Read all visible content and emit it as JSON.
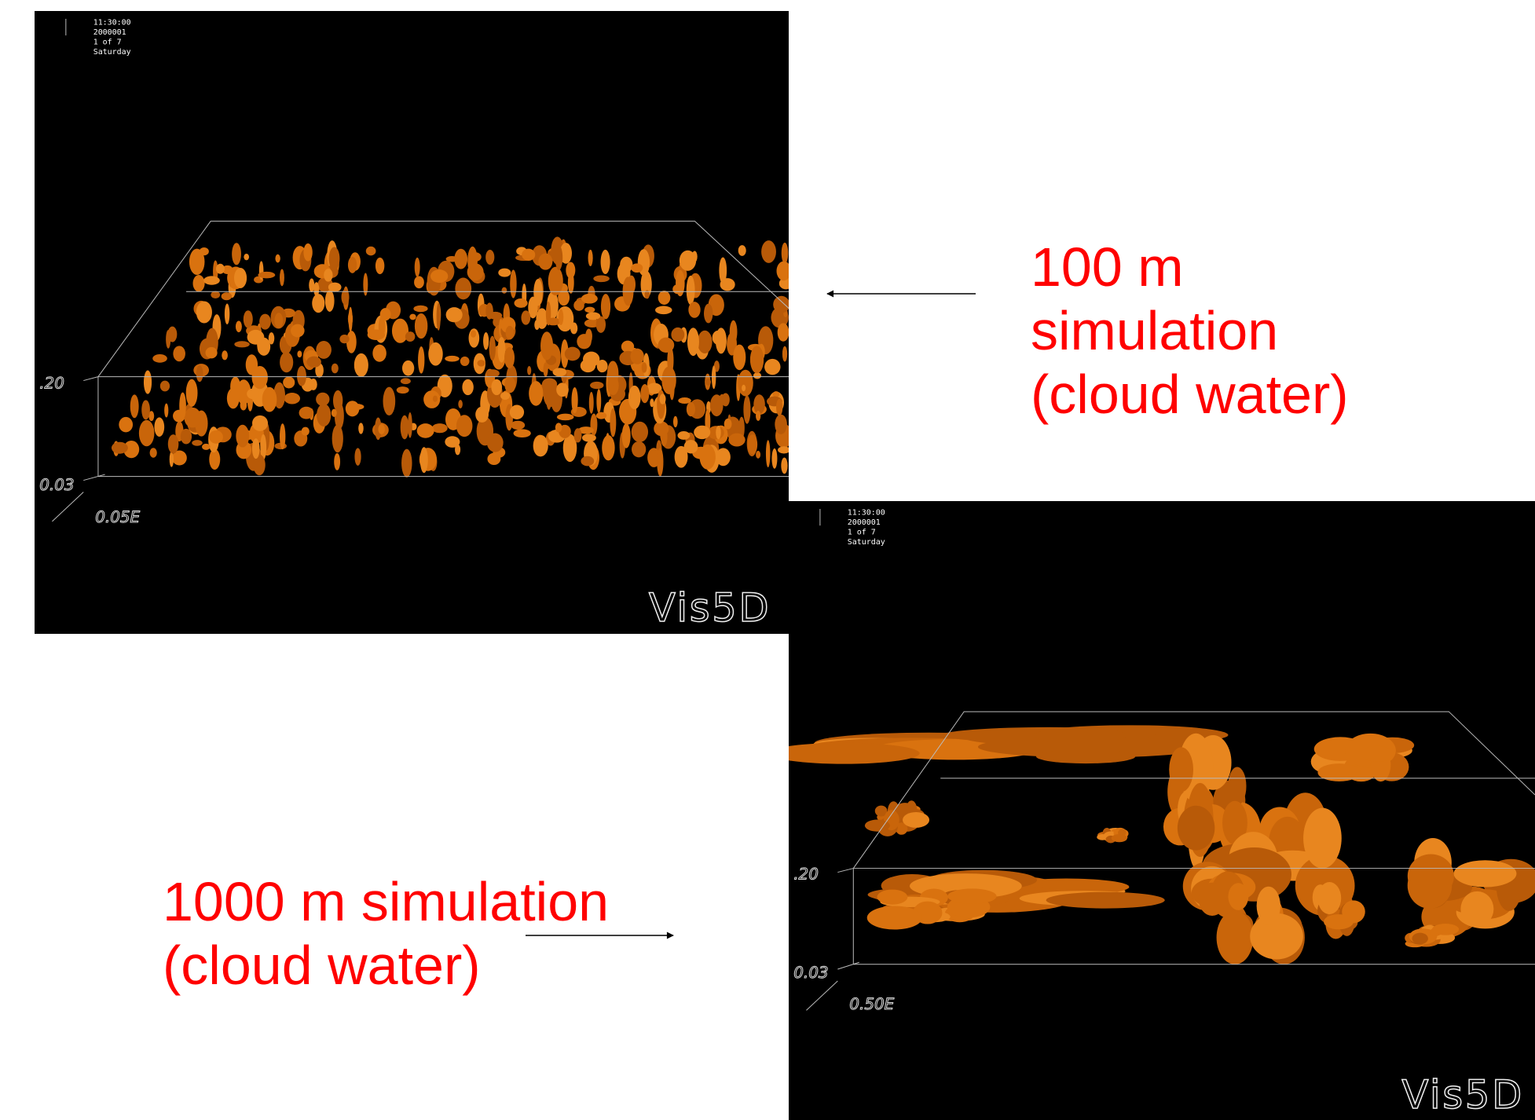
{
  "panels": [
    {
      "timestamp": {
        "time": "11:30:00",
        "date": "2000001",
        "step": "1 of 7",
        "day": "Saturday"
      },
      "axis_labels": {
        "upper": ".20",
        "lower": "0.03",
        "east": "0.05E"
      },
      "logo": "Vis5D"
    },
    {
      "timestamp": {
        "time": "11:30:00",
        "date": "2000001",
        "step": "1 of 7",
        "day": "Saturday"
      },
      "axis_labels": {
        "upper": ".20",
        "lower": "0.03",
        "east": "0.50E"
      },
      "logo": "Vis5D"
    }
  ],
  "annotations": [
    {
      "text": "100 m simulation (cloud water)"
    },
    {
      "text": "1000 m simulation (cloud water)"
    }
  ]
}
